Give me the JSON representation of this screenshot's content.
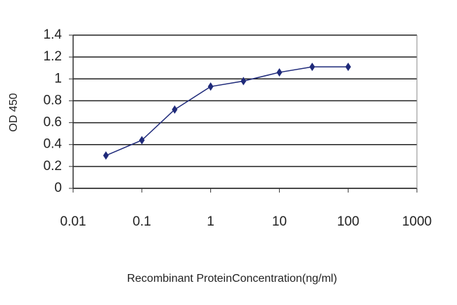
{
  "chart_data": {
    "type": "line",
    "xlabel": "Recombinant ProteinConcentration(ng/ml)",
    "ylabel": "OD 450",
    "x": [
      0.03,
      0.1,
      0.3,
      1,
      3,
      10,
      30,
      100
    ],
    "values": [
      0.3,
      0.44,
      0.72,
      0.93,
      0.98,
      1.06,
      1.11,
      1.11
    ],
    "color": "#1f2a7a",
    "xscale": "log",
    "xlim": [
      0.01,
      1000
    ],
    "xticks": [
      0.01,
      0.1,
      1,
      10,
      100,
      1000
    ],
    "ylim": [
      0,
      1.4
    ],
    "yticks": [
      0,
      0.2,
      0.4,
      0.6,
      0.8,
      1,
      1.2,
      1.4
    ],
    "grid": true
  }
}
